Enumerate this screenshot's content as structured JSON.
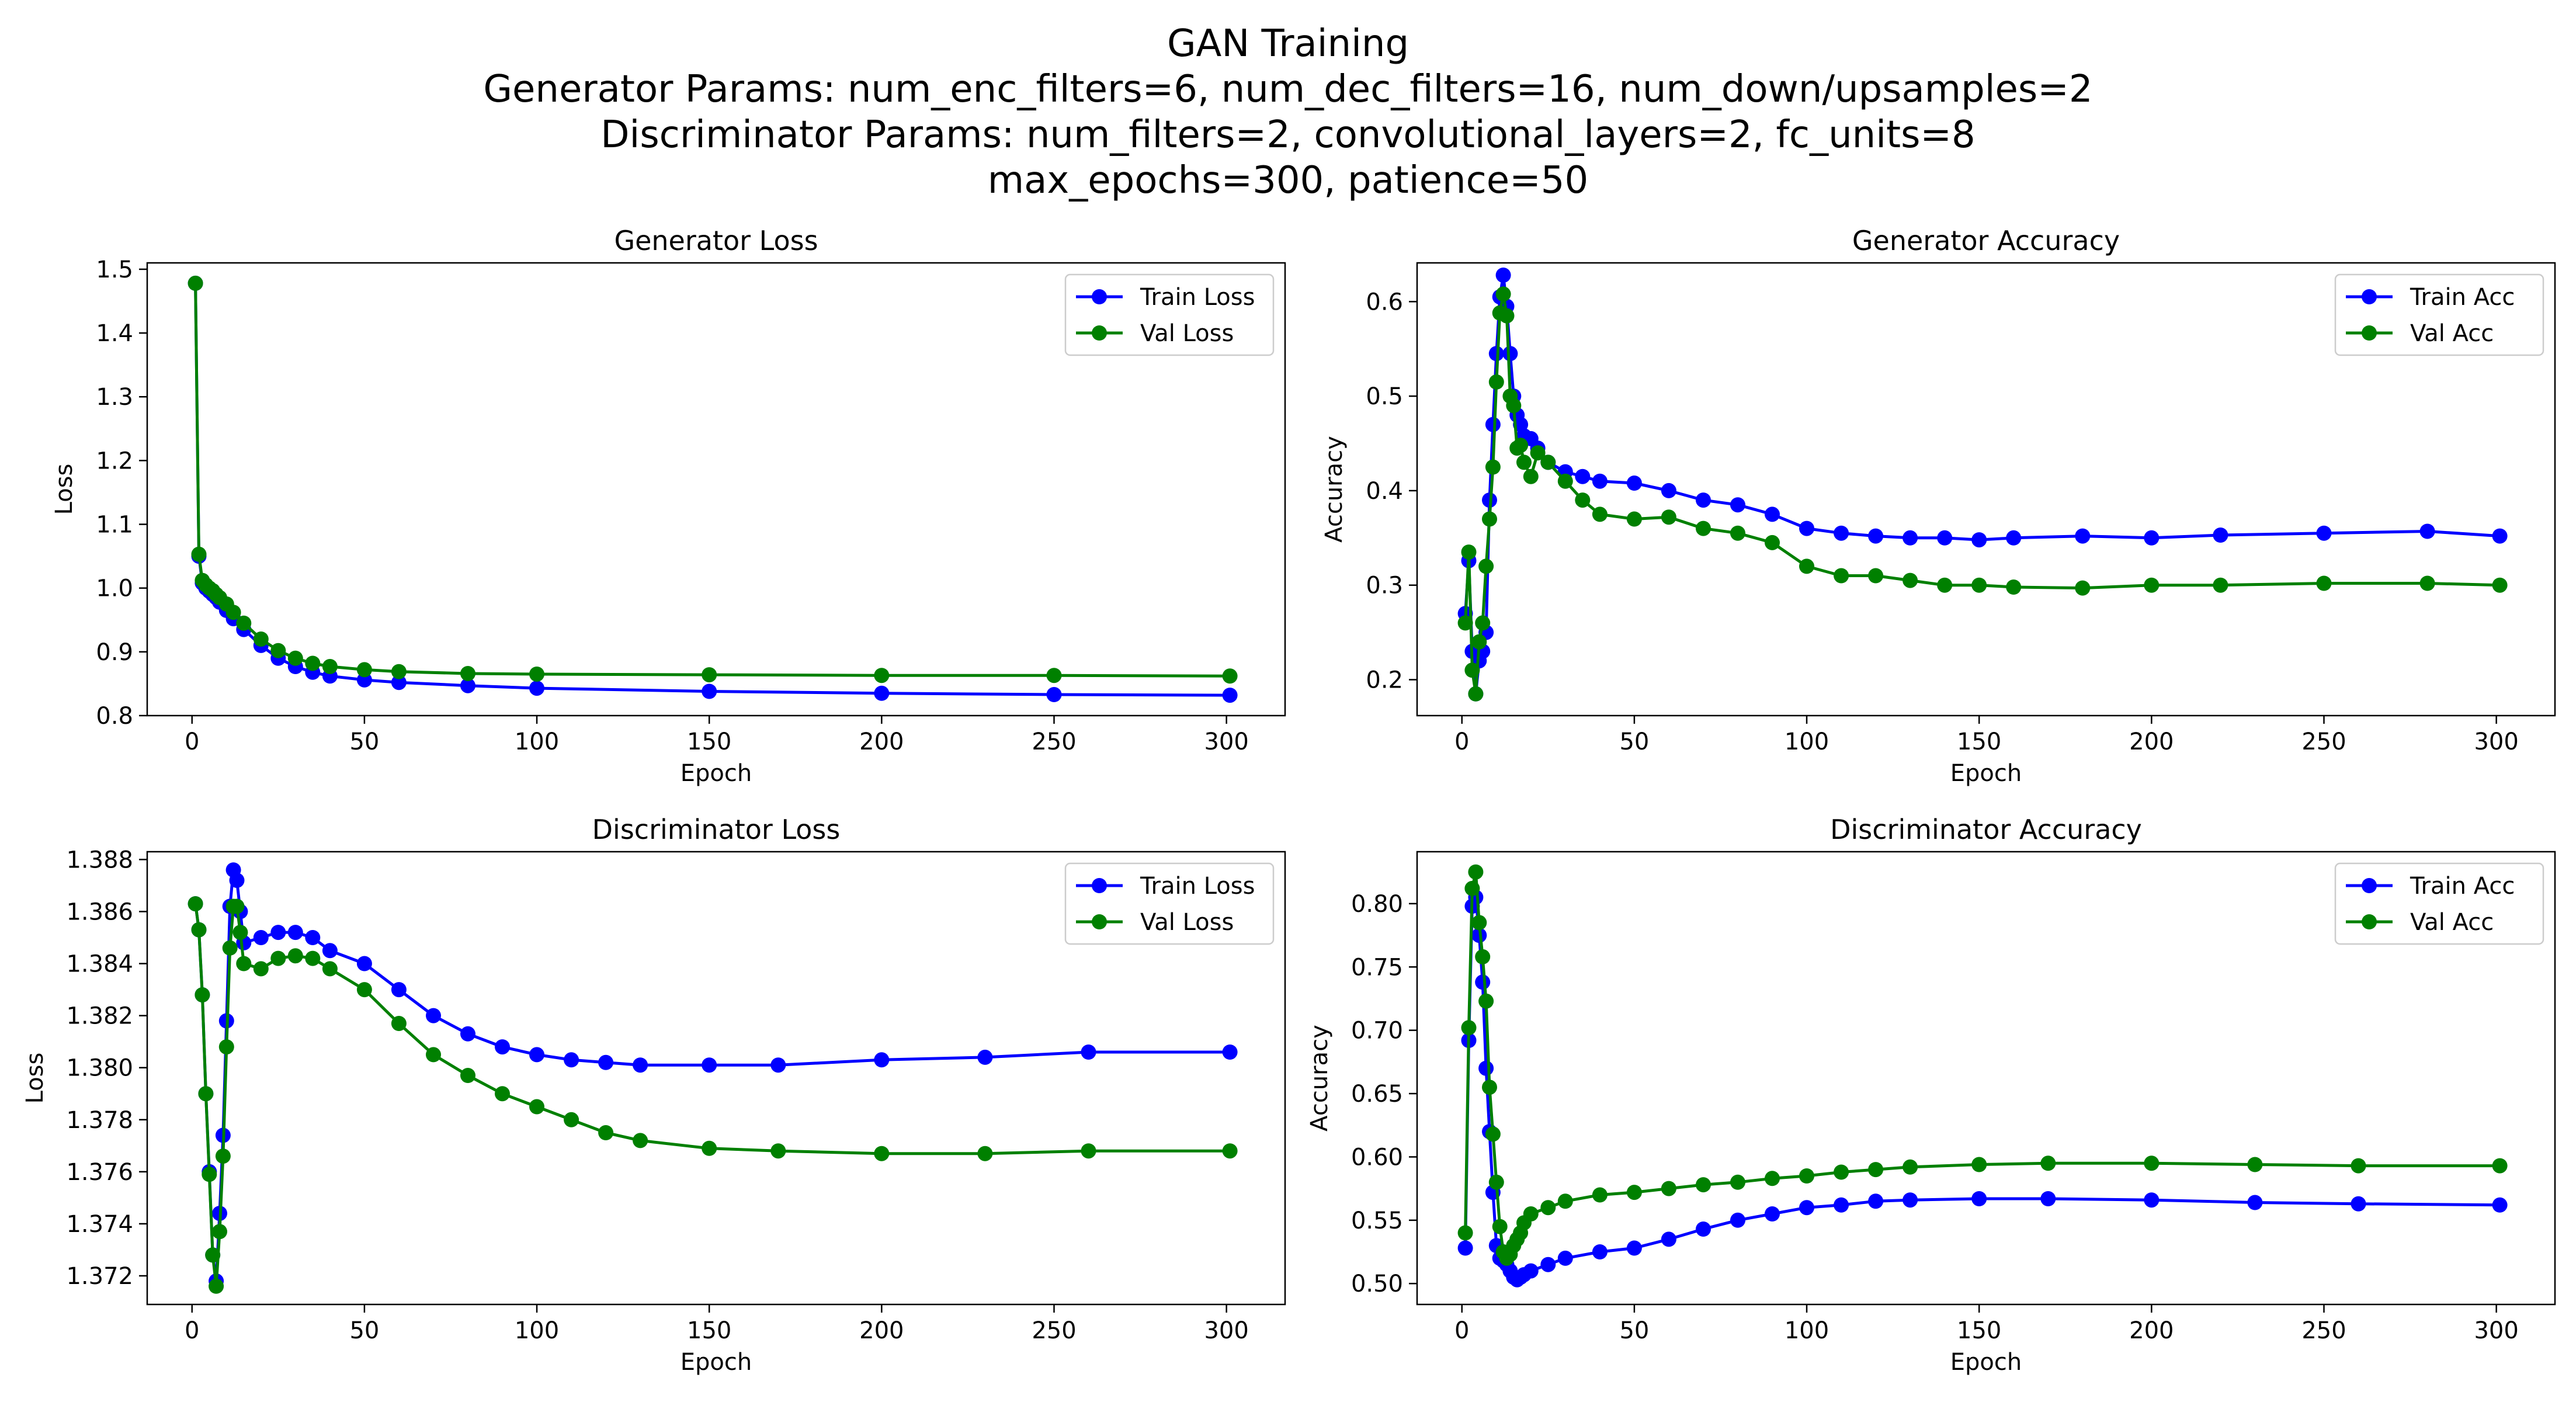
{
  "figure": {
    "title_lines": [
      "GAN Training",
      "Generator Params: num_enc_filters=6, num_dec_filters=16, num_down/upsamples=2",
      "Discriminator Params: num_filters=2, convolutional_layers=2, fc_units=8",
      "max_epochs=300, patience=50"
    ]
  },
  "colors": {
    "train": "#0000ff",
    "val": "#008000"
  },
  "chart_data": [
    {
      "type": "line",
      "title": "Generator Loss",
      "xlabel": "Epoch",
      "ylabel": "Loss",
      "xlim": [
        -13,
        317
      ],
      "ylim": [
        0.8,
        1.51
      ],
      "xticks": [
        0,
        50,
        100,
        150,
        200,
        250,
        300
      ],
      "yticks": [
        0.8,
        0.9,
        1.0,
        1.1,
        1.2,
        1.3,
        1.4,
        1.5
      ],
      "ytick_labels": [
        "0.8",
        "0.9",
        "1.0",
        "1.1",
        "1.2",
        "1.3",
        "1.4",
        "1.5"
      ],
      "legend": "top-right",
      "series": [
        {
          "name": "Train Loss",
          "color": "blue",
          "x": [
            1,
            2,
            3,
            4,
            5,
            6,
            7,
            8,
            10,
            12,
            15,
            20,
            25,
            30,
            35,
            40,
            50,
            60,
            80,
            100,
            150,
            200,
            250,
            301
          ],
          "y": [
            1.478,
            1.05,
            1.008,
            1.0,
            0.995,
            0.99,
            0.985,
            0.978,
            0.965,
            0.952,
            0.935,
            0.91,
            0.89,
            0.877,
            0.868,
            0.862,
            0.856,
            0.852,
            0.847,
            0.843,
            0.838,
            0.835,
            0.833,
            0.832
          ]
        },
        {
          "name": "Val Loss",
          "color": "green",
          "x": [
            1,
            2,
            3,
            4,
            5,
            6,
            7,
            8,
            10,
            12,
            15,
            20,
            25,
            30,
            35,
            40,
            50,
            60,
            80,
            100,
            150,
            200,
            250,
            301
          ],
          "y": [
            1.478,
            1.053,
            1.012,
            1.005,
            1.0,
            0.996,
            0.99,
            0.985,
            0.975,
            0.962,
            0.945,
            0.92,
            0.902,
            0.89,
            0.882,
            0.877,
            0.872,
            0.869,
            0.866,
            0.865,
            0.864,
            0.863,
            0.863,
            0.862
          ]
        }
      ]
    },
    {
      "type": "line",
      "title": "Generator Accuracy",
      "xlabel": "Epoch",
      "ylabel": "Accuracy",
      "xlim": [
        -13,
        317
      ],
      "ylim": [
        0.162,
        0.641
      ],
      "xticks": [
        0,
        50,
        100,
        150,
        200,
        250,
        300
      ],
      "yticks": [
        0.2,
        0.3,
        0.4,
        0.5,
        0.6
      ],
      "ytick_labels": [
        "0.2",
        "0.3",
        "0.4",
        "0.5",
        "0.6"
      ],
      "legend": "top-right",
      "series": [
        {
          "name": "Train Acc",
          "color": "blue",
          "x": [
            1,
            2,
            3,
            4,
            5,
            6,
            7,
            8,
            9,
            10,
            11,
            12,
            13,
            14,
            15,
            16,
            17,
            18,
            20,
            22,
            25,
            30,
            35,
            40,
            50,
            60,
            70,
            80,
            90,
            100,
            110,
            120,
            130,
            140,
            150,
            160,
            180,
            200,
            220,
            250,
            280,
            301
          ],
          "y": [
            0.27,
            0.326,
            0.23,
            0.185,
            0.22,
            0.23,
            0.25,
            0.39,
            0.47,
            0.545,
            0.605,
            0.628,
            0.595,
            0.545,
            0.5,
            0.48,
            0.47,
            0.458,
            0.455,
            0.445,
            0.43,
            0.42,
            0.415,
            0.41,
            0.408,
            0.4,
            0.39,
            0.385,
            0.375,
            0.36,
            0.355,
            0.352,
            0.35,
            0.35,
            0.348,
            0.35,
            0.352,
            0.35,
            0.353,
            0.355,
            0.357,
            0.352
          ]
        },
        {
          "name": "Val Acc",
          "color": "green",
          "x": [
            1,
            2,
            3,
            4,
            5,
            6,
            7,
            8,
            9,
            10,
            11,
            12,
            13,
            14,
            15,
            16,
            17,
            18,
            20,
            22,
            25,
            30,
            35,
            40,
            50,
            60,
            70,
            80,
            90,
            100,
            110,
            120,
            130,
            140,
            150,
            160,
            180,
            200,
            220,
            250,
            280,
            301
          ],
          "y": [
            0.26,
            0.335,
            0.21,
            0.185,
            0.24,
            0.26,
            0.32,
            0.37,
            0.425,
            0.515,
            0.588,
            0.608,
            0.585,
            0.5,
            0.49,
            0.445,
            0.448,
            0.43,
            0.415,
            0.44,
            0.43,
            0.41,
            0.39,
            0.375,
            0.37,
            0.372,
            0.36,
            0.355,
            0.345,
            0.32,
            0.31,
            0.31,
            0.305,
            0.3,
            0.3,
            0.298,
            0.297,
            0.3,
            0.3,
            0.302,
            0.302,
            0.3
          ]
        }
      ]
    },
    {
      "type": "line",
      "title": "Discriminator Loss",
      "xlabel": "Epoch",
      "ylabel": "Loss",
      "xlim": [
        -13,
        317
      ],
      "ylim": [
        1.3709,
        1.3883
      ],
      "xticks": [
        0,
        50,
        100,
        150,
        200,
        250,
        300
      ],
      "yticks": [
        1.372,
        1.374,
        1.376,
        1.378,
        1.38,
        1.382,
        1.384,
        1.386,
        1.388
      ],
      "ytick_labels": [
        "1.372",
        "1.374",
        "1.376",
        "1.378",
        "1.380",
        "1.382",
        "1.384",
        "1.386",
        "1.388"
      ],
      "legend": "top-right",
      "series": [
        {
          "name": "Train Loss",
          "color": "blue",
          "x": [
            1,
            2,
            3,
            4,
            5,
            6,
            7,
            8,
            9,
            10,
            11,
            12,
            13,
            14,
            15,
            20,
            25,
            30,
            35,
            40,
            50,
            60,
            70,
            80,
            90,
            100,
            110,
            120,
            130,
            150,
            170,
            200,
            230,
            260,
            301
          ],
          "y": [
            1.3863,
            1.3853,
            1.3828,
            1.379,
            1.376,
            1.3728,
            1.3718,
            1.3744,
            1.3774,
            1.3818,
            1.3862,
            1.3876,
            1.3872,
            1.386,
            1.3848,
            1.385,
            1.3852,
            1.3852,
            1.385,
            1.3845,
            1.384,
            1.383,
            1.382,
            1.3813,
            1.3808,
            1.3805,
            1.3803,
            1.3802,
            1.3801,
            1.3801,
            1.3801,
            1.3803,
            1.3804,
            1.3806,
            1.3806
          ]
        },
        {
          "name": "Val Loss",
          "color": "green",
          "x": [
            1,
            2,
            3,
            4,
            5,
            6,
            7,
            8,
            9,
            10,
            11,
            12,
            13,
            14,
            15,
            20,
            25,
            30,
            35,
            40,
            50,
            60,
            70,
            80,
            90,
            100,
            110,
            120,
            130,
            150,
            170,
            200,
            230,
            260,
            301
          ],
          "y": [
            1.3863,
            1.3853,
            1.3828,
            1.379,
            1.3759,
            1.3728,
            1.3716,
            1.3737,
            1.3766,
            1.3808,
            1.3846,
            1.3862,
            1.3862,
            1.3852,
            1.384,
            1.3838,
            1.3842,
            1.3843,
            1.3842,
            1.3838,
            1.383,
            1.3817,
            1.3805,
            1.3797,
            1.379,
            1.3785,
            1.378,
            1.3775,
            1.3772,
            1.3769,
            1.3768,
            1.3767,
            1.3767,
            1.3768,
            1.3768
          ]
        }
      ]
    },
    {
      "type": "line",
      "title": "Discriminator Accuracy",
      "xlabel": "Epoch",
      "ylabel": "Accuracy",
      "xlim": [
        -13,
        317
      ],
      "ylim": [
        0.4835,
        0.841
      ],
      "xticks": [
        0,
        50,
        100,
        150,
        200,
        250,
        300
      ],
      "yticks": [
        0.5,
        0.55,
        0.6,
        0.65,
        0.7,
        0.75,
        0.8
      ],
      "ytick_labels": [
        "0.50",
        "0.55",
        "0.60",
        "0.65",
        "0.70",
        "0.75",
        "0.80"
      ],
      "legend": "top-right",
      "series": [
        {
          "name": "Train Acc",
          "color": "blue",
          "x": [
            1,
            2,
            3,
            4,
            5,
            6,
            7,
            8,
            9,
            10,
            11,
            12,
            13,
            14,
            15,
            16,
            17,
            18,
            20,
            25,
            30,
            40,
            50,
            60,
            70,
            80,
            90,
            100,
            110,
            120,
            130,
            150,
            170,
            200,
            230,
            260,
            301
          ],
          "y": [
            0.528,
            0.692,
            0.798,
            0.805,
            0.775,
            0.738,
            0.67,
            0.62,
            0.572,
            0.53,
            0.52,
            0.518,
            0.515,
            0.51,
            0.505,
            0.503,
            0.505,
            0.507,
            0.51,
            0.515,
            0.52,
            0.525,
            0.528,
            0.535,
            0.543,
            0.55,
            0.555,
            0.56,
            0.562,
            0.565,
            0.566,
            0.567,
            0.567,
            0.566,
            0.564,
            0.563,
            0.562
          ]
        },
        {
          "name": "Val Acc",
          "color": "green",
          "x": [
            1,
            2,
            3,
            4,
            5,
            6,
            7,
            8,
            9,
            10,
            11,
            12,
            13,
            14,
            15,
            16,
            17,
            18,
            20,
            25,
            30,
            40,
            50,
            60,
            70,
            80,
            90,
            100,
            110,
            120,
            130,
            150,
            170,
            200,
            230,
            260,
            301
          ],
          "y": [
            0.54,
            0.702,
            0.812,
            0.825,
            0.785,
            0.758,
            0.723,
            0.655,
            0.618,
            0.58,
            0.545,
            0.525,
            0.52,
            0.523,
            0.53,
            0.535,
            0.54,
            0.548,
            0.555,
            0.56,
            0.565,
            0.57,
            0.572,
            0.575,
            0.578,
            0.58,
            0.583,
            0.585,
            0.588,
            0.59,
            0.592,
            0.594,
            0.595,
            0.595,
            0.594,
            0.593,
            0.593
          ]
        }
      ]
    }
  ]
}
